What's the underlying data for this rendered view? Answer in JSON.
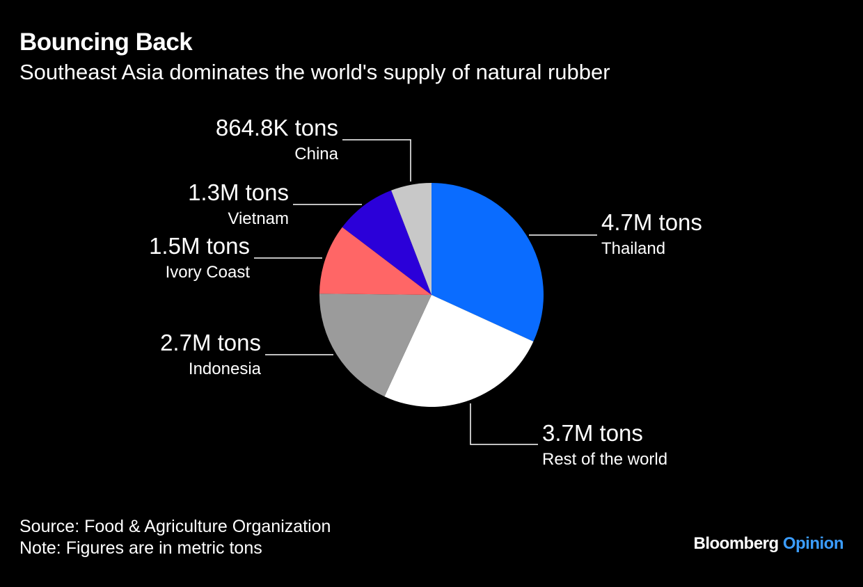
{
  "header": {
    "title": "Bouncing Back",
    "subtitle": "Southeast Asia dominates the world's supply of natural rubber"
  },
  "footer": {
    "source": "Source: Food & Agriculture Organization",
    "note": "Note: Figures are in metric tons"
  },
  "logo": {
    "brand": "Bloomberg",
    "section": "Opinion",
    "brand_color": "#ffffff",
    "section_color": "#3b9dff"
  },
  "chart_data": {
    "type": "pie",
    "background": "#000000",
    "start": "12 o'clock",
    "direction": "clockwise",
    "slices": [
      {
        "name": "Thailand",
        "value": 4.7,
        "label": "4.7M tons",
        "color": "#0a6cff"
      },
      {
        "name": "Rest of the world",
        "value": 3.7,
        "label": "3.7M tons",
        "color": "#ffffff"
      },
      {
        "name": "Indonesia",
        "value": 2.7,
        "label": "2.7M tons",
        "color": "#9b9b9b"
      },
      {
        "name": "Ivory Coast",
        "value": 1.5,
        "label": "1.5M tons",
        "color": "#ff6666"
      },
      {
        "name": "Vietnam",
        "value": 1.3,
        "label": "1.3M tons",
        "color": "#2b00d9"
      },
      {
        "name": "China",
        "value": 0.8648,
        "label": "864.8K tons",
        "color": "#c8c8c8"
      }
    ],
    "value_unit": "million metric tons"
  }
}
